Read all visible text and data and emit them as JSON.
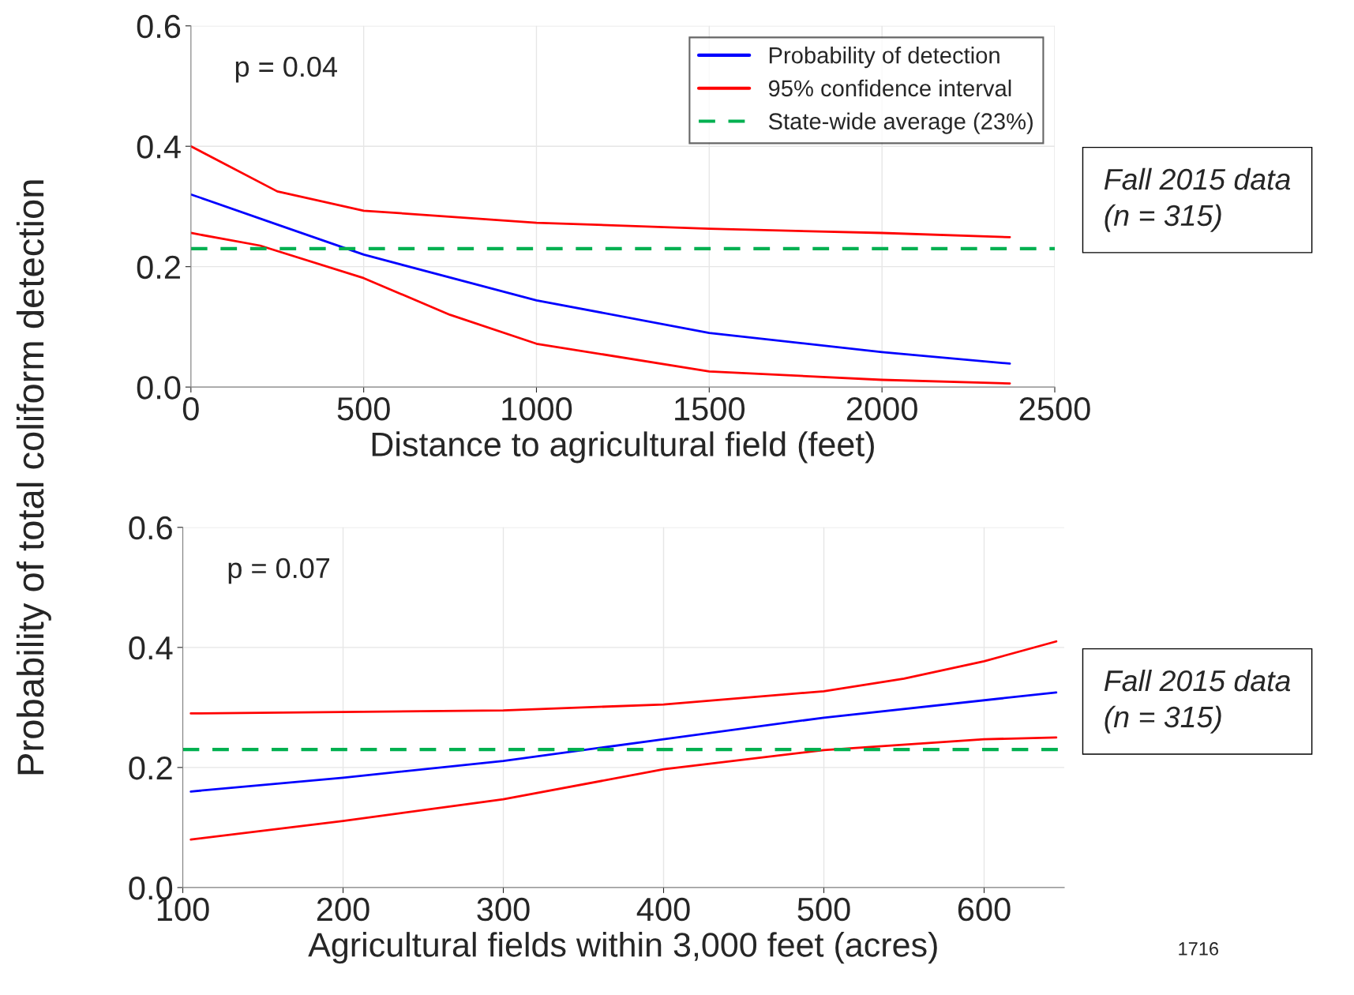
{
  "chart_data": [
    {
      "type": "line",
      "xlabel": "Distance to agricultural field (feet)",
      "ylabel": "Probability of total coliform detection",
      "xlim": [
        0,
        2500
      ],
      "xticks": [
        0,
        500,
        1000,
        1500,
        2000,
        2500
      ],
      "ylim": [
        0,
        0.6
      ],
      "yticks": [
        {
          "value": 0,
          "label": "0.0"
        },
        0.2,
        0.4,
        0.6
      ],
      "grid": true,
      "legend": "top right",
      "series": [
        {
          "name": "Probability of detection",
          "color": "#0000ff",
          "x": [
            0,
            250,
            500,
            1000,
            1500,
            2000,
            2370
          ],
          "values": [
            0.32,
            0.27,
            0.22,
            0.144,
            0.09,
            0.058,
            0.039
          ]
        },
        {
          "name": "95% confidence interval",
          "color": "#ff0000",
          "x": [
            0,
            250,
            500,
            1000,
            1500,
            2000,
            2370
          ],
          "values": [
            0.4,
            0.325,
            0.293,
            0.273,
            0.263,
            0.256,
            0.249
          ]
        },
        {
          "color": "#ff0000",
          "x": [
            0,
            200,
            500,
            750,
            1000,
            1500,
            2000,
            2370
          ],
          "values": [
            0.256,
            0.235,
            0.181,
            0.12,
            0.072,
            0.026,
            0.012,
            0.006
          ]
        }
      ],
      "ref_lines": [
        {
          "axis": "y",
          "value": 0.23,
          "label": "State-wide average (23%)",
          "color": "#00b050",
          "line_style": "dashed"
        }
      ],
      "annotations": [
        "p = 0.04",
        "Fall 2015 data\n(n = 315)"
      ]
    },
    {
      "type": "line",
      "xlabel": "Agricultural fields within 3,000 feet (acres)",
      "xlim": [
        100,
        650
      ],
      "xticks": [
        100,
        200,
        300,
        400,
        500,
        600
      ],
      "ylim": [
        0,
        0.6
      ],
      "yticks": [
        {
          "value": 0,
          "label": "0.0"
        },
        0.2,
        0.4,
        0.6
      ],
      "grid": true,
      "series": [
        {
          "color": "#0000ff",
          "x": [
            105,
            200,
            300,
            400,
            500,
            645
          ],
          "values": [
            0.16,
            0.183,
            0.211,
            0.247,
            0.283,
            0.325
          ]
        },
        {
          "color": "#ff0000",
          "x": [
            105,
            300,
            400,
            500,
            550,
            600,
            645
          ],
          "values": [
            0.29,
            0.295,
            0.305,
            0.327,
            0.348,
            0.377,
            0.41
          ]
        },
        {
          "color": "#ff0000",
          "x": [
            105,
            200,
            300,
            400,
            500,
            600,
            645
          ],
          "values": [
            0.08,
            0.111,
            0.147,
            0.197,
            0.229,
            0.247,
            0.25
          ]
        }
      ],
      "ref_lines": [
        {
          "axis": "y",
          "value": 0.23,
          "color": "#00b050",
          "line_style": "dashed"
        }
      ],
      "annotations": [
        "p = 0.07",
        "Fall 2015 data\n(n = 315)",
        "1716"
      ]
    }
  ]
}
